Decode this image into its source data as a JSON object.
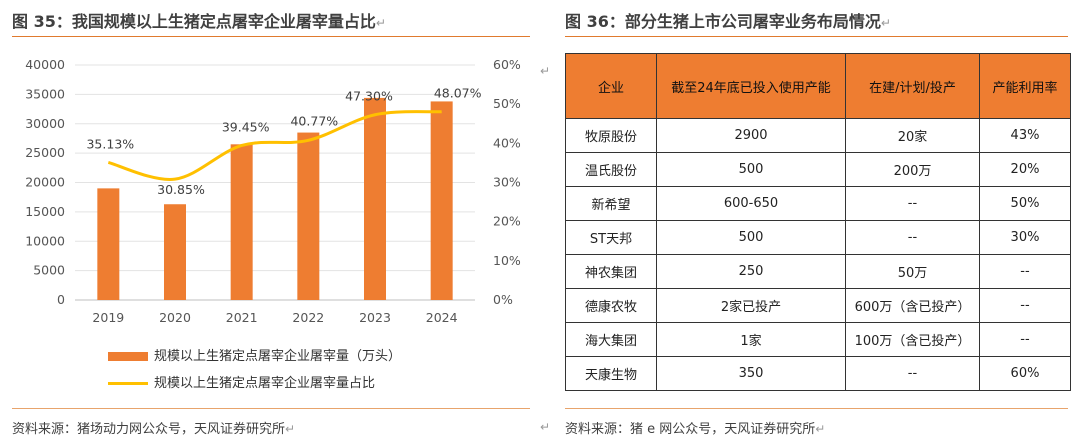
{
  "left": {
    "title": "图 35：我国规模以上生猪定点屠宰企业屠宰量占比",
    "source": "资料来源：猪场动力网公众号，天风证券研究所"
  },
  "right": {
    "title": "图 36：部分生猪上市公司屠宰业务布局情况",
    "source": "资料来源：猪 e 网公众号，天风证券研究所",
    "table": {
      "headers": [
        "企业",
        "截至24年底已投入使用产能",
        "在建/计划/投产",
        "产能利用率"
      ],
      "rows": [
        [
          "牧原股份",
          "2900",
          "20家",
          "43%"
        ],
        [
          "温氏股份",
          "500",
          "200万",
          "20%"
        ],
        [
          "新希望",
          "600-650",
          "--",
          "50%"
        ],
        [
          "ST天邦",
          "500",
          "--",
          "30%"
        ],
        [
          "神农集团",
          "250",
          "50万",
          "--"
        ],
        [
          "德康农牧",
          "2家已投产",
          "600万（含已投产）",
          "--"
        ],
        [
          "海大集团",
          "1家",
          "100万（含已投产）",
          "--"
        ],
        [
          "天康生物",
          "350",
          "--",
          "60%"
        ]
      ]
    }
  },
  "return_mark": "↵",
  "chart_data": {
    "type": "bar",
    "categories": [
      "2019",
      "2020",
      "2021",
      "2022",
      "2023",
      "2024"
    ],
    "series": [
      {
        "name": "规模以上生猪定点屠宰企业屠宰量（万头）",
        "type": "bar",
        "axis": "left",
        "values": [
          19000,
          16300,
          26500,
          28500,
          34400,
          33800
        ],
        "color": "#ee7d31"
      },
      {
        "name": "规模以上生猪定点屠宰企业屠宰量占比",
        "type": "line",
        "axis": "right",
        "values": [
          35.13,
          30.85,
          39.45,
          40.77,
          47.3,
          48.07
        ],
        "labels": [
          "35.13%",
          "30.85%",
          "39.45%",
          "40.77%",
          "47.30%",
          "48.07%"
        ],
        "color": "#ffc000"
      }
    ],
    "y_left": {
      "min": 0,
      "max": 40000,
      "ticks": [
        "0",
        "5000",
        "10000",
        "15000",
        "20000",
        "25000",
        "30000",
        "35000",
        "40000"
      ]
    },
    "y_right": {
      "min": 0,
      "max": 60,
      "ticks": [
        "0%",
        "10%",
        "20%",
        "30%",
        "40%",
        "50%",
        "60%"
      ]
    },
    "grid": true,
    "legend_position": "bottom"
  }
}
